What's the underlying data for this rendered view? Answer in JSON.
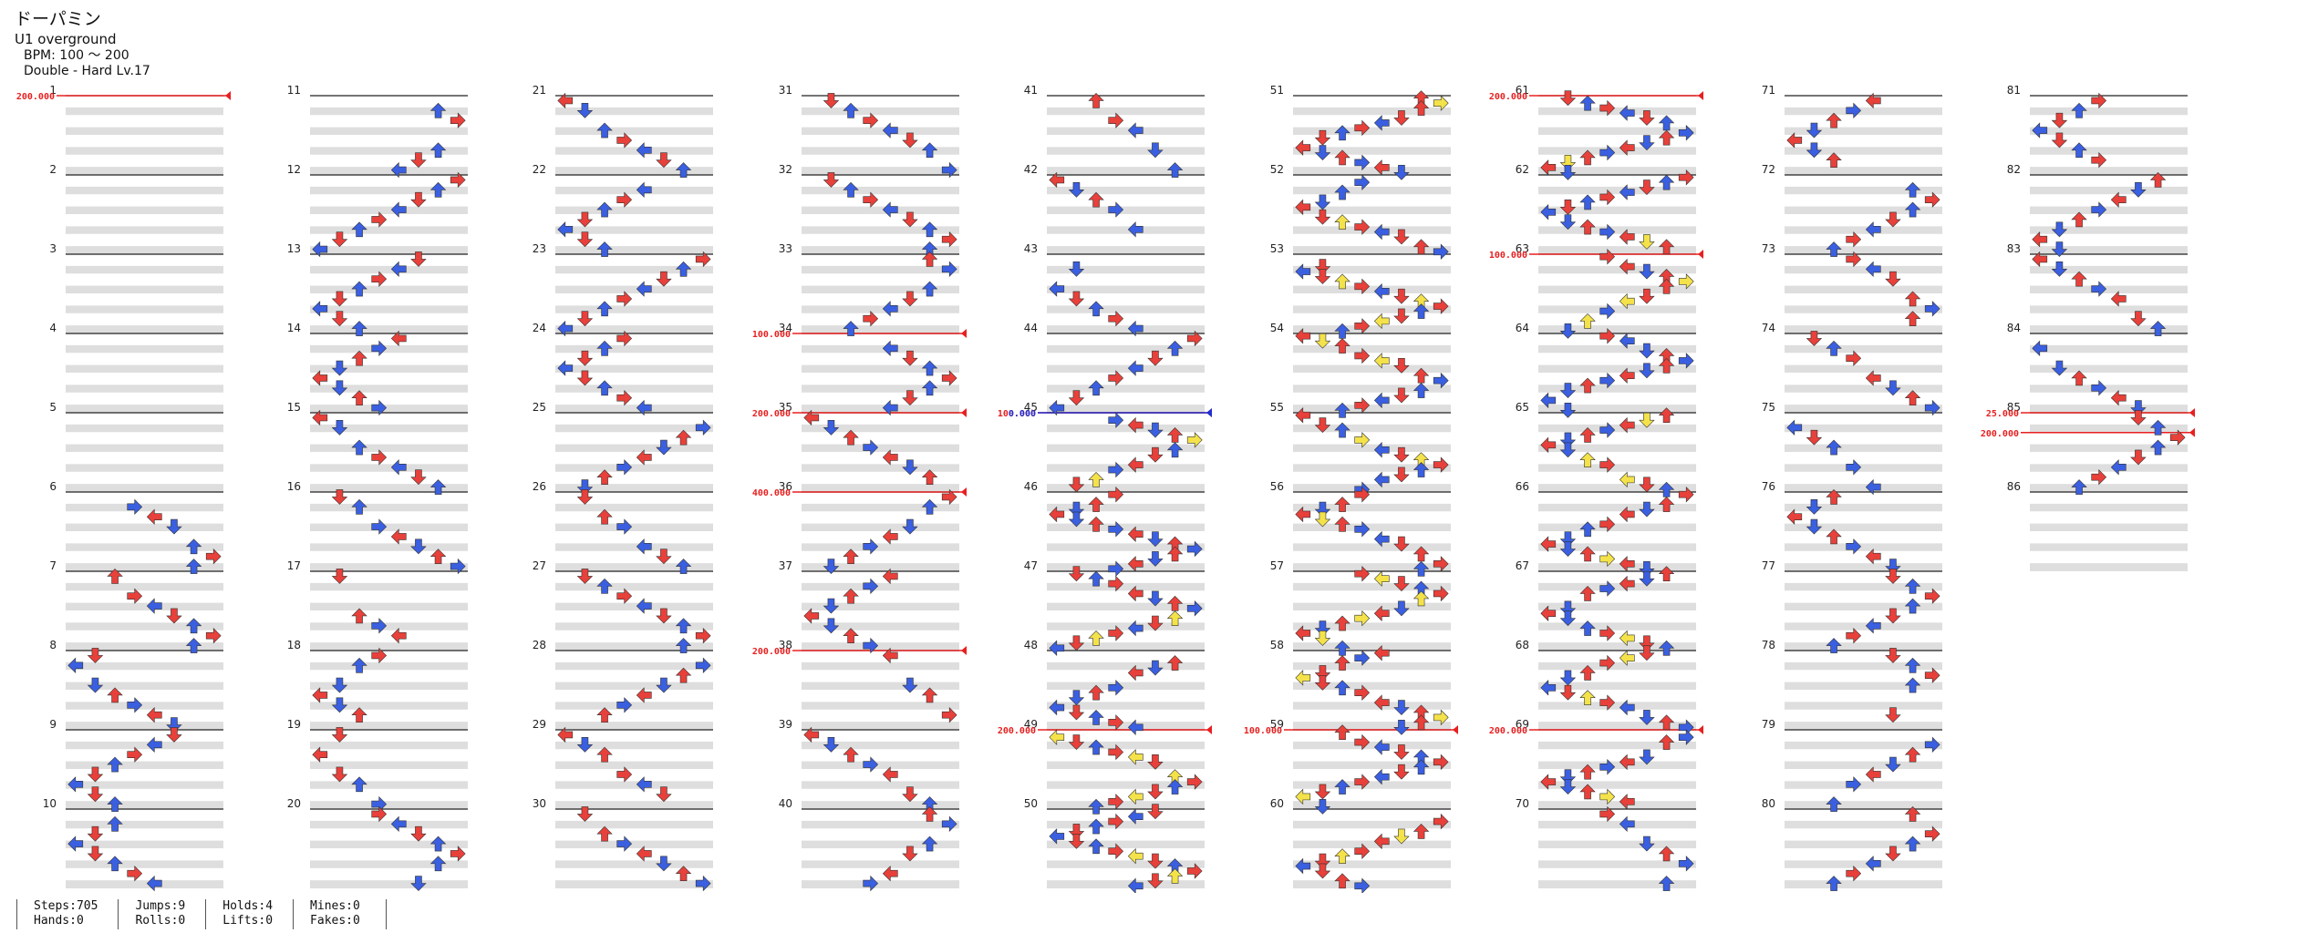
{
  "song": {
    "title": "ドーパミン",
    "artist": "U1 overground",
    "bpm": "BPM: 100 ～ 200",
    "difficulty": "Double - Hard Lv.17"
  },
  "stats": {
    "steps": "Steps:705",
    "hands": "Hands:0",
    "jumps": "Jumps:9",
    "rolls": "Rolls:0",
    "holds": "Holds:4",
    "lifts": "Lifts:0",
    "mines": "Mines:0",
    "fakes": "Fakes:0"
  },
  "colors": {
    "quarter": "#e8403a",
    "eighth": "#3a5fe0",
    "sixteenth": "#f4e24a",
    "twelfth": "#b14ae8",
    "twentyfourth": "#f08a3a",
    "hold_head": "#7ed07e",
    "bpm_change": "#e82020",
    "scroll_change": "#2030d0",
    "band": "#dedede",
    "measure_line": "#222222"
  },
  "measures": {
    "count": 86,
    "labeled": [
      "1",
      "2",
      "3",
      "4",
      "5",
      "6",
      "7",
      "8",
      "9",
      "10",
      "11",
      "12",
      "13",
      "14",
      "15",
      "16",
      "17",
      "18",
      "19",
      "20",
      "21",
      "22",
      "23",
      "24",
      "25",
      "26",
      "27",
      "28",
      "29",
      "30",
      "31",
      "32",
      "33",
      "34",
      "35",
      "36",
      "37",
      "38",
      "39",
      "40",
      "41",
      "42",
      "43",
      "44",
      "45",
      "46",
      "47",
      "48",
      "49",
      "50",
      "51",
      "52",
      "53",
      "54",
      "55",
      "56",
      "57",
      "58",
      "59",
      "60",
      "61",
      "62",
      "63",
      "64",
      "65",
      "66",
      "67",
      "68",
      "69",
      "70",
      "71",
      "72",
      "73",
      "74",
      "75",
      "76",
      "77",
      "78",
      "79",
      "80",
      "81",
      "82",
      "83",
      "84",
      "85",
      "86"
    ]
  },
  "markers": [
    {
      "measure": 1,
      "label": "200.000",
      "kind": "bpm"
    },
    {
      "measure": 34,
      "label": "100.000",
      "kind": "bpm"
    },
    {
      "measure": 35,
      "label": "200.000",
      "kind": "bpm"
    },
    {
      "measure": 36,
      "label": "400.000",
      "kind": "bpm"
    },
    {
      "measure": 38,
      "label": "200.000",
      "kind": "bpm"
    },
    {
      "measure": 45,
      "label": "100.000",
      "kind": "bpm"
    },
    {
      "measure": 45,
      "label": "0.000",
      "kind": "scroll"
    },
    {
      "measure": 49,
      "label": "200.000",
      "kind": "bpm"
    },
    {
      "measure": 59,
      "label": "100.000",
      "kind": "bpm"
    },
    {
      "measure": 61,
      "label": "200.000",
      "kind": "bpm"
    },
    {
      "measure": 63,
      "label": "100.000",
      "kind": "bpm"
    },
    {
      "measure": 69,
      "label": "200.000",
      "kind": "bpm"
    },
    {
      "measure": 85,
      "label": "25.000",
      "kind": "bpm"
    },
    {
      "measure": 85.25,
      "label": "200.000",
      "kind": "bpm"
    }
  ]
}
